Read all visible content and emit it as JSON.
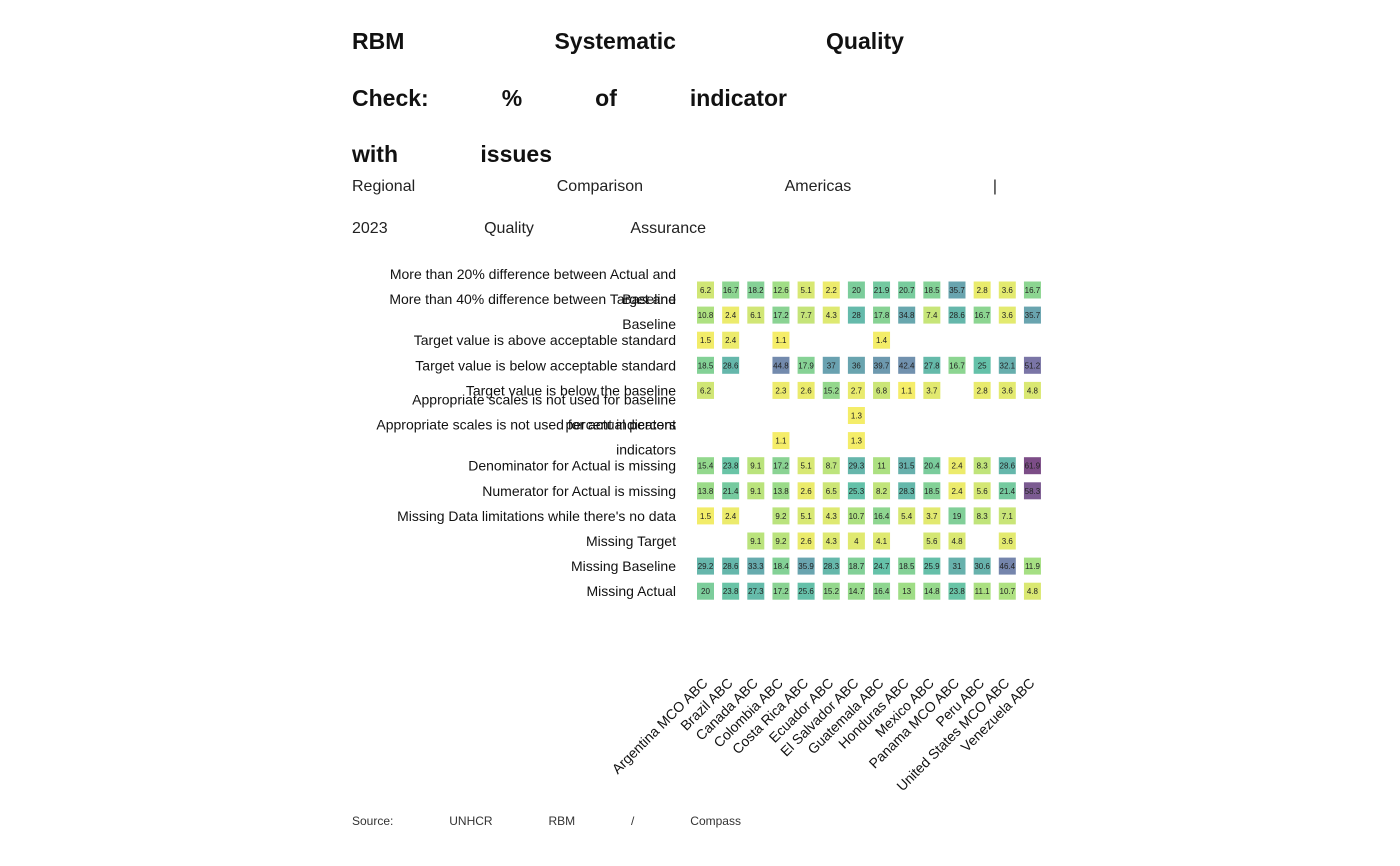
{
  "header": {
    "title_lines": [
      [
        "RBM",
        "Systematic",
        "Quality"
      ],
      [
        "Check:",
        "%",
        "of",
        "indicator"
      ],
      [
        "with",
        "issues"
      ]
    ],
    "subtitle_lines": [
      [
        "Regional",
        "Comparison",
        "Americas",
        "|"
      ],
      [
        "2023",
        "Quality",
        "Assurance"
      ]
    ]
  },
  "source": [
    "Source:",
    "UNHCR",
    "RBM",
    "/",
    "Compass"
  ],
  "chart_data": {
    "type": "heatmap",
    "x_categories": [
      "Argentina MCO ABC",
      "Brazil ABC",
      "Canada ABC",
      "Colombia ABC",
      "Costa Rica ABC",
      "Ecuador ABC",
      "El Salvador ABC",
      "Guatemala ABC",
      "Honduras ABC",
      "Mexico ABC",
      "Panama MCO ABC",
      "Peru ABC",
      "United States MCO ABC",
      "Venezuela ABC"
    ],
    "y_categories": [
      [
        "More than 20% difference between Actual and",
        "Baseline"
      ],
      [
        "More than 40% difference between Target and",
        "Baseline"
      ],
      [
        "Target value is above acceptable standard"
      ],
      [
        "Target value is below acceptable standard"
      ],
      [
        "Target value is below the baseline"
      ],
      [
        "Appropriate scales is not used for baseline",
        "percent indicators"
      ],
      [
        "Appropriate scales is not used for actual percent",
        "indicators"
      ],
      [
        "Denominator for Actual is missing"
      ],
      [
        "Numerator for Actual is missing"
      ],
      [
        "Missing Data limitations while there's no data"
      ],
      [
        "Missing Target"
      ],
      [
        "Missing Baseline"
      ],
      [
        "Missing Actual"
      ]
    ],
    "values": [
      [
        6.2,
        16.7,
        18.2,
        12.6,
        5.1,
        2.2,
        20,
        21.9,
        20.7,
        18.5,
        35.7,
        2.8,
        3.6,
        16.7
      ],
      [
        10.8,
        2.4,
        6.1,
        17.2,
        7.7,
        4.3,
        28,
        17.8,
        34.8,
        7.4,
        28.6,
        16.7,
        3.6,
        35.7
      ],
      [
        1.5,
        2.4,
        null,
        1.1,
        null,
        null,
        null,
        1.4,
        null,
        null,
        null,
        null,
        null,
        null
      ],
      [
        18.5,
        28.6,
        null,
        44.8,
        17.9,
        37,
        36,
        39.7,
        42.4,
        27.8,
        16.7,
        25,
        32.1,
        51.2
      ],
      [
        6.2,
        null,
        null,
        2.3,
        2.6,
        15.2,
        2.7,
        6.8,
        1.1,
        3.7,
        null,
        2.8,
        3.6,
        4.8
      ],
      [
        null,
        null,
        null,
        null,
        null,
        null,
        1.3,
        null,
        null,
        null,
        null,
        null,
        null,
        null
      ],
      [
        null,
        null,
        null,
        1.1,
        null,
        null,
        1.3,
        null,
        null,
        null,
        null,
        null,
        null,
        null
      ],
      [
        15.4,
        23.8,
        9.1,
        17.2,
        5.1,
        8.7,
        29.3,
        11,
        31.5,
        20.4,
        2.4,
        8.3,
        28.6,
        61.9
      ],
      [
        13.8,
        21.4,
        9.1,
        13.8,
        2.6,
        6.5,
        25.3,
        8.2,
        28.3,
        18.5,
        2.4,
        5.6,
        21.4,
        58.3
      ],
      [
        1.5,
        2.4,
        null,
        9.2,
        5.1,
        4.3,
        10.7,
        16.4,
        5.4,
        3.7,
        19,
        8.3,
        7.1,
        null
      ],
      [
        null,
        null,
        9.1,
        9.2,
        2.6,
        4.3,
        4,
        4.1,
        null,
        5.6,
        4.8,
        null,
        3.6,
        null
      ],
      [
        29.2,
        28.6,
        33.3,
        18.4,
        35.9,
        28.3,
        18.7,
        24.7,
        18.5,
        25.9,
        31,
        30.6,
        46.4,
        11.9
      ],
      [
        20,
        23.8,
        27.3,
        17.2,
        25.6,
        15.2,
        14.7,
        16.4,
        13,
        14.8,
        23.8,
        11.1,
        10.7,
        4.8
      ]
    ],
    "color_scale": [
      "#fde725",
      "#7ad151",
      "#22a884",
      "#2a788e",
      "#414487",
      "#440154"
    ]
  }
}
